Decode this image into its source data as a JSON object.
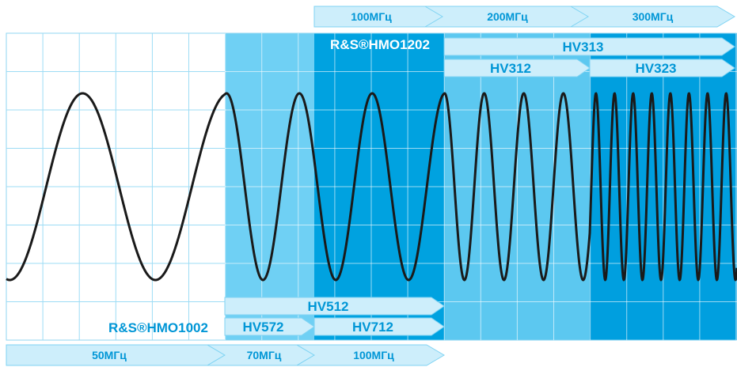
{
  "colors": {
    "white_zone": "#ffffff",
    "light_zone": "#6fd0f4",
    "mid_zone": "#00a2e0",
    "pale_zone": "#5cc8f0",
    "deep_zone": "#009fdf",
    "arrow_fill": "#cdeefb",
    "arrow_stroke": "#7fd3f3",
    "label_blue": "#0096d6",
    "grid_light": "#9ddcf5",
    "grid_dark": "#ffffff",
    "wave": "#1a1a1a"
  },
  "top_scale": [
    {
      "label": "100МГц"
    },
    {
      "label": "200МГц"
    },
    {
      "label": "300МГц"
    }
  ],
  "bottom_scale": [
    {
      "label": "50МГц"
    },
    {
      "label": "70МГц"
    },
    {
      "label": "100МГц"
    }
  ],
  "model_labels": {
    "upper": "R&S®HMO1202",
    "lower": "R&S®HMO1002"
  },
  "probe_arrows": [
    {
      "label": "HV313"
    },
    {
      "label": "HV312"
    },
    {
      "label": "HV323"
    },
    {
      "label": "HV512"
    },
    {
      "label": "HV572"
    },
    {
      "label": "HV712"
    }
  ]
}
